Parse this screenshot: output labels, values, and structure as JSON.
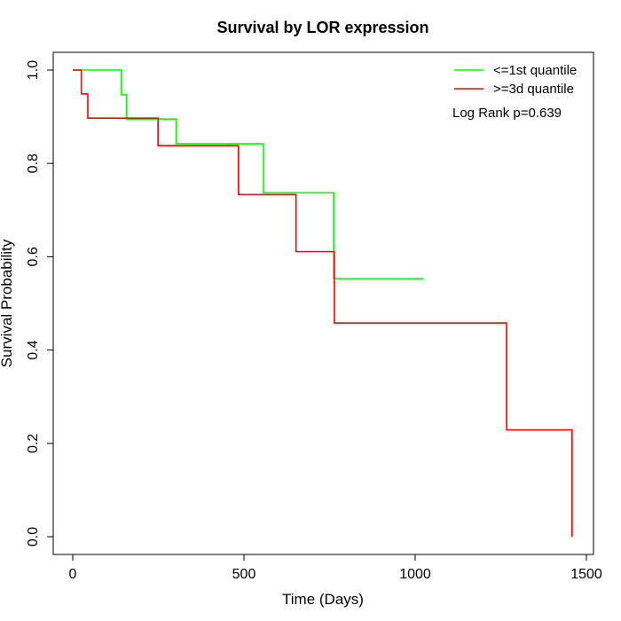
{
  "chart_data": {
    "type": "line",
    "title": "Survival by LOR expression",
    "xlabel": "Time (Days)",
    "ylabel": "Survival Probability",
    "xlim": [
      0,
      1500
    ],
    "ylim": [
      0,
      1
    ],
    "xticks": [
      0,
      500,
      1000,
      1500
    ],
    "yticks": [
      0.0,
      0.2,
      0.4,
      0.6,
      0.8,
      1.0
    ],
    "ytick_labels": [
      "0.0",
      "0.2",
      "0.4",
      "0.6",
      "0.8",
      "1.0"
    ],
    "grid": false,
    "legend_position": "top-right",
    "step": true,
    "series": [
      {
        "name": "<=1st quantile",
        "color": "#00ff00",
        "x": [
          0,
          142,
          157,
          302,
          557,
          762,
          1025
        ],
        "y": [
          1.0,
          0.947,
          0.895,
          0.842,
          0.737,
          0.553,
          0.553
        ]
      },
      {
        "name": ">=3d quantile",
        "color": "#ff0000",
        "x": [
          0,
          25,
          44,
          249,
          484,
          652,
          764,
          1267,
          1458,
          1458
        ],
        "y": [
          1.0,
          0.949,
          0.897,
          0.838,
          0.733,
          0.611,
          0.458,
          0.229,
          0.229,
          0.0
        ]
      }
    ],
    "annotations": [
      "Log Rank p=0.639"
    ]
  }
}
